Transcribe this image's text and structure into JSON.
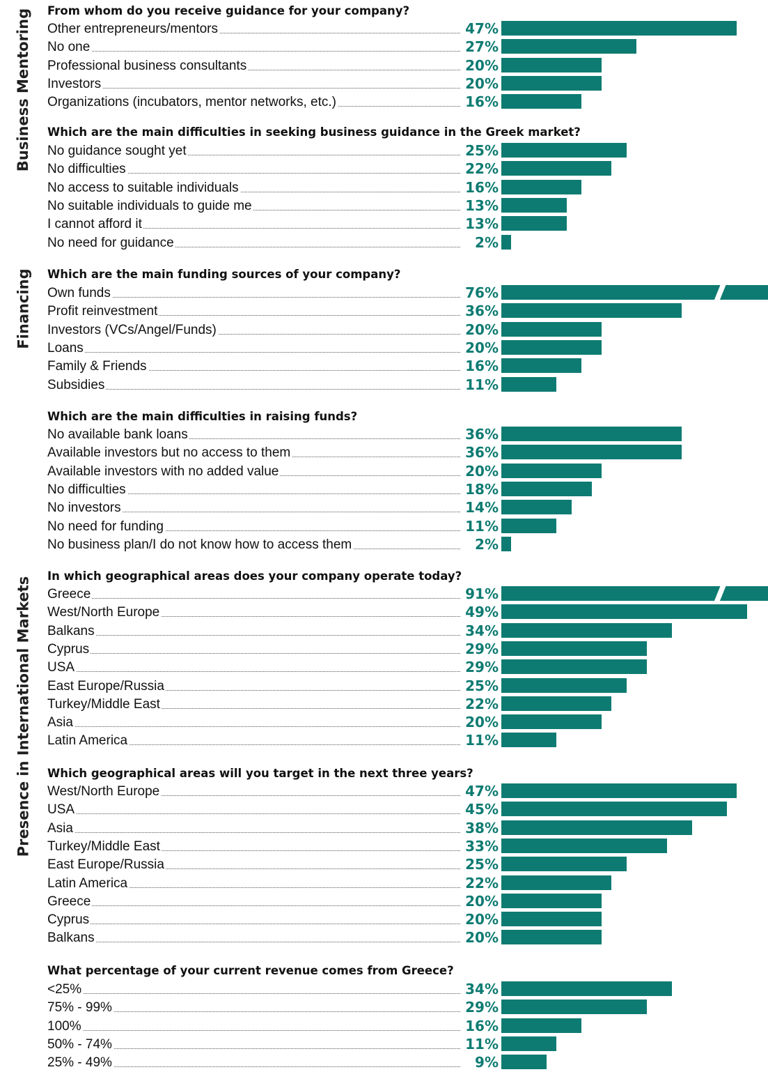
{
  "chart_data": [
    {
      "type": "bar",
      "section": "Business Mentoring",
      "title": "From whom do you receive guidance for your company?",
      "categories": [
        "Other entrepreneurs/mentors",
        "No one",
        "Professional business consultants",
        "Investors",
        "Organizations (incubators, mentor networks, etc.)"
      ],
      "labels": [
        "47%",
        "27%",
        "20%",
        "20%",
        "16%"
      ],
      "values": [
        47,
        27,
        20,
        20,
        16
      ]
    },
    {
      "type": "bar",
      "section": "Business Mentoring",
      "title": "Which are the main difficulties in seeking business guidance in the Greek market?",
      "categories": [
        "No guidance sought yet",
        "No difficulties",
        "No access to suitable individuals",
        "No suitable individuals to guide me",
        "I cannot afford it",
        "No need for guidance"
      ],
      "labels": [
        "25%",
        "22%",
        "16%",
        "13%",
        "13%",
        "2%"
      ],
      "values": [
        25,
        22,
        16,
        13,
        13,
        2
      ]
    },
    {
      "type": "bar",
      "section": "Financing",
      "title": "Which are the main funding sources of your company?",
      "categories": [
        "Own funds",
        "Profit reinvestment",
        "Investors (VCs/Angel/Funds)",
        "Loans",
        "Family & Friends",
        "Subsidies"
      ],
      "labels": [
        "76%",
        "36%",
        "20%",
        "20%",
        "16%",
        "11%"
      ],
      "values": [
        76,
        36,
        20,
        20,
        16,
        11
      ],
      "broken": [
        true,
        false,
        false,
        false,
        false,
        false
      ]
    },
    {
      "type": "bar",
      "section": "Financing",
      "title": "Which are the main difficulties in raising funds?",
      "categories": [
        "No available bank loans",
        "Available investors but no access to them",
        "Available investors with no added value",
        "No difficulties",
        "No investors",
        "No need for funding",
        "No business plan/I do not know how to access them"
      ],
      "labels": [
        "36%",
        "36%",
        "20%",
        "18%",
        "14%",
        "11%",
        "2%"
      ],
      "values": [
        36,
        36,
        20,
        18,
        14,
        11,
        2
      ]
    },
    {
      "type": "bar",
      "section": "Presence in International Markets",
      "title": "In which geographical areas does your company operate today?",
      "categories": [
        "Greece",
        "West/North Europe",
        "Balkans",
        "Cyprus",
        "USA",
        "East Europe/Russia",
        "Turkey/Middle East",
        "Asia",
        "Latin America"
      ],
      "labels": [
        "91%",
        "49%",
        "34%",
        "29%",
        "29%",
        "25%",
        "22%",
        "20%",
        "11%"
      ],
      "values": [
        91,
        49,
        34,
        29,
        29,
        25,
        22,
        20,
        11
      ],
      "broken": [
        true,
        false,
        false,
        false,
        false,
        false,
        false,
        false,
        false
      ]
    },
    {
      "type": "bar",
      "section": "Presence in International Markets",
      "title": "Which geographical areas will you target in the next three years?",
      "categories": [
        "West/North Europe",
        "USA",
        "Asia",
        "Turkey/Middle East",
        "East Europe/Russia",
        "Latin America",
        "Greece",
        "Cyprus",
        "Balkans"
      ],
      "labels": [
        "47%",
        "45%",
        "38%",
        "33%",
        "25%",
        "22%",
        "20%",
        "20%",
        "20%"
      ],
      "values": [
        47,
        45,
        38,
        33,
        25,
        22,
        20,
        20,
        20
      ]
    },
    {
      "type": "bar",
      "section": "Presence in International Markets",
      "title": "What percentage of your current revenue comes from Greece?",
      "categories": [
        "<25%",
        "75% - 99%",
        "100%",
        "50% - 74%",
        "25% - 49%"
      ],
      "labels": [
        "34%",
        "29%",
        "16%",
        "11%",
        "9%"
      ],
      "values": [
        34,
        29,
        16,
        11,
        9
      ]
    }
  ],
  "sections": [
    "Business Mentoring",
    "Financing",
    "Presence in International Markets"
  ],
  "colors": {
    "bar": "#0e7b72",
    "label": "#0e7b72"
  }
}
